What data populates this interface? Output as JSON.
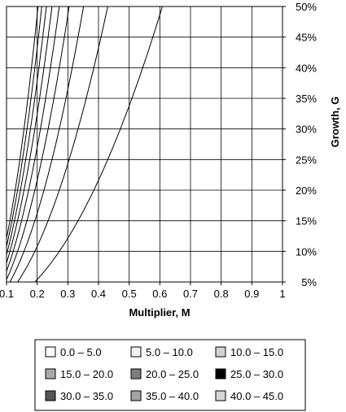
{
  "chart_data": {
    "type": "contour",
    "xlabel": "Multiplier, M",
    "ylabel": "Growth, G",
    "x_ticks": [
      "0.1",
      "0.2",
      "0.3",
      "0.4",
      "0.5",
      "0.6",
      "0.7",
      "0.8",
      "0.9",
      "1"
    ],
    "y_ticks": [
      "5%",
      "10%",
      "15%",
      "20%",
      "25%",
      "30%",
      "35%",
      "40%",
      "45%",
      "50%"
    ],
    "xlim": [
      0.1,
      1.0
    ],
    "ylim": [
      0.05,
      0.5
    ],
    "grid": true,
    "y_axis_side": "right",
    "legend_position": "bottom",
    "contour_levels": [
      0,
      5,
      10,
      15,
      20,
      25,
      30,
      35,
      40,
      45
    ],
    "legend": [
      {
        "label": "0.0 – 5.0",
        "color": "#ffffff"
      },
      {
        "label": "5.0 – 10.0",
        "color": "#f0f0f0"
      },
      {
        "label": "10.0 – 15.0",
        "color": "#d2d2d2"
      },
      {
        "label": "15.0 – 20.0",
        "color": "#a9a9a9"
      },
      {
        "label": "20.0 – 25.0",
        "color": "#7d7d7d"
      },
      {
        "label": "25.0 – 30.0",
        "color": "#000000"
      },
      {
        "label": "30.0 – 35.0",
        "color": "#555555"
      },
      {
        "label": "35.0 – 40.0",
        "color": "#a4a4a4"
      },
      {
        "label": "40.0 – 45.0",
        "color": "#d6d6d6"
      }
    ]
  }
}
